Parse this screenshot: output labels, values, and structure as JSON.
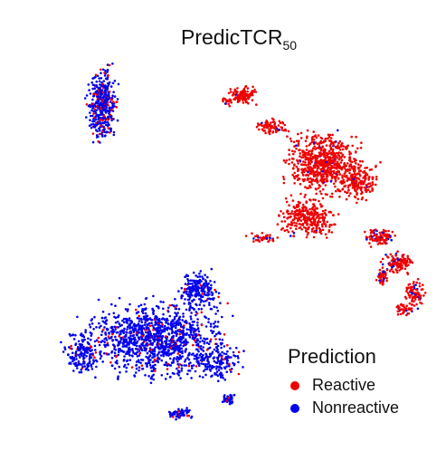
{
  "chart_data": {
    "type": "scatter",
    "title": {
      "main": "PredicTCR",
      "subscript": "50"
    },
    "xlabel": "",
    "ylabel": "",
    "grid": false,
    "legend": {
      "title": "Prediction",
      "placement": "bottom-right",
      "entries": [
        {
          "label": "Reactive",
          "color": "#ee0000"
        },
        {
          "label": "Nonreactive",
          "color": "#0000ee"
        }
      ]
    },
    "series": [
      {
        "name": "Reactive",
        "color": "#ee0000"
      },
      {
        "name": "Nonreactive",
        "color": "#0000ee"
      }
    ],
    "clusters": [
      {
        "label": "top-left",
        "reactive_fraction": 0.2
      },
      {
        "label": "top-right",
        "reactive_fraction": 0.98
      },
      {
        "label": "right-loop",
        "reactive_fraction": 0.85
      },
      {
        "label": "bottom-left",
        "reactive_fraction": 0.08
      }
    ]
  }
}
